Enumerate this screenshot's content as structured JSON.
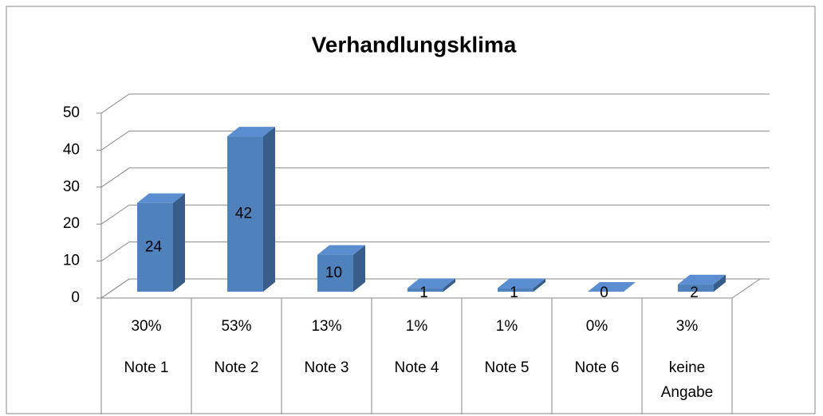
{
  "chart_data": {
    "type": "bar3d",
    "title": "Verhandlungsklima",
    "categories": [
      "Note 1",
      "Note 2",
      "Note 3",
      "Note 4",
      "Note 5",
      "Note 6",
      "keine Angabe"
    ],
    "values": [
      24,
      42,
      10,
      1,
      1,
      0,
      2
    ],
    "table_row": {
      "values": [
        30,
        53,
        13,
        1,
        1,
        0,
        3
      ],
      "value_labels": [
        "30%",
        "53%",
        "13%",
        "1%",
        "1%",
        "0%",
        "3%"
      ]
    },
    "color": "#4f81bd",
    "ylim": [
      0,
      50
    ],
    "yticks": [
      0,
      10,
      20,
      30,
      40,
      50
    ],
    "grid": true
  }
}
